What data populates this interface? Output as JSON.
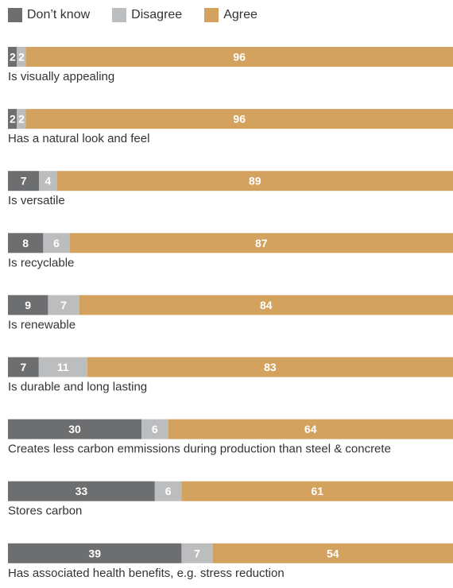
{
  "chart_data": {
    "type": "bar",
    "orientation": "horizontal",
    "stacked": true,
    "title": "",
    "xlabel": "",
    "ylabel": "",
    "xlim": [
      0,
      100
    ],
    "legend_position": "top-left",
    "grid": false,
    "categories": [
      "Is visually appealing",
      "Has a natural look and feel",
      "Is versatile",
      "Is recyclable",
      "Is renewable",
      "Is durable and long lasting",
      "Creates less carbon emmissions during production than steel & concrete",
      "Stores carbon",
      "Has associated health benefits, e.g. stress reduction"
    ],
    "series": [
      {
        "name": "Don’t know",
        "color": "#6d6e70",
        "values": [
          2,
          2,
          7,
          8,
          9,
          7,
          30,
          33,
          39
        ]
      },
      {
        "name": "Disagree",
        "color": "#bcbdbf",
        "values": [
          2,
          2,
          4,
          6,
          7,
          11,
          6,
          6,
          7
        ]
      },
      {
        "name": "Agree",
        "color": "#d4a25f",
        "values": [
          96,
          96,
          89,
          87,
          84,
          83,
          64,
          61,
          54
        ]
      }
    ]
  }
}
